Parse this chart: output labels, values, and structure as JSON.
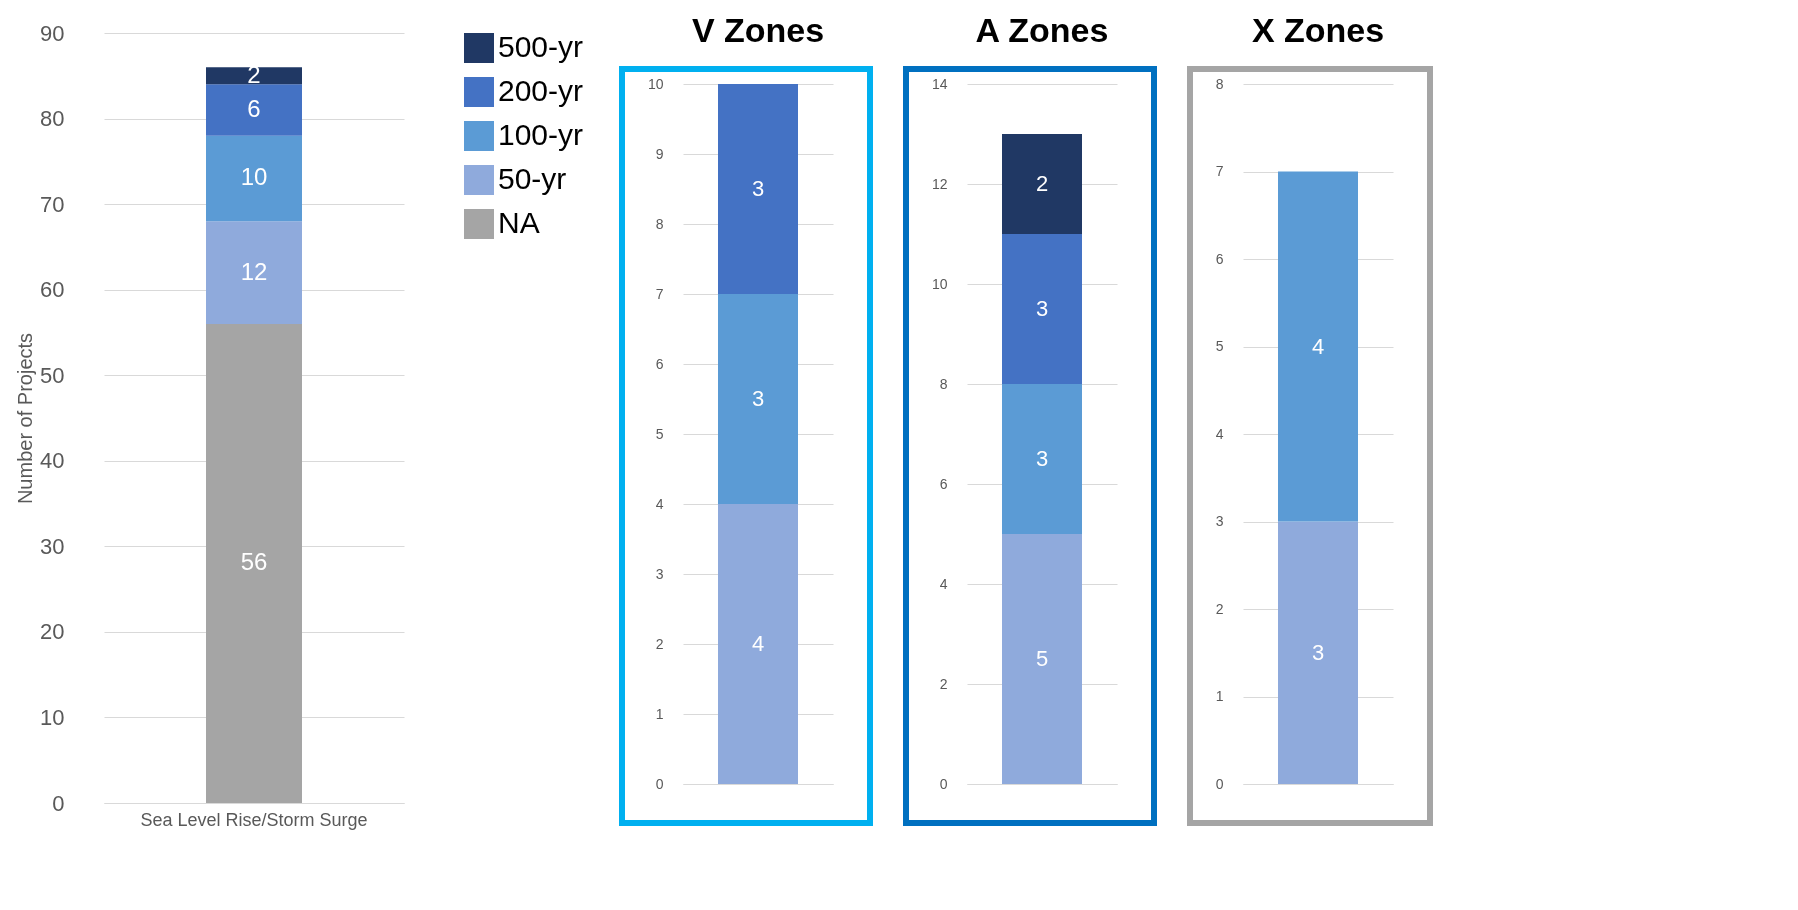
{
  "chart_data": [
    {
      "type": "bar",
      "stacked": true,
      "ylabel": "Number of Projects",
      "categories": [
        "Sea Level Rise/Storm Surge"
      ],
      "ylim": [
        0,
        90
      ],
      "yticks": [
        0,
        10,
        20,
        30,
        40,
        50,
        60,
        70,
        80,
        90
      ],
      "grid": "y",
      "legend": "right",
      "data_labels": true,
      "series": [
        {
          "name": "NA",
          "color": "#a5a5a5",
          "values": [
            56
          ]
        },
        {
          "name": "50-yr",
          "color": "#8faadc",
          "values": [
            12
          ]
        },
        {
          "name": "100-yr",
          "color": "#5b9bd5",
          "values": [
            10
          ]
        },
        {
          "name": "200-yr",
          "color": "#4472c4",
          "values": [
            6
          ]
        },
        {
          "name": "500-yr",
          "color": "#203864",
          "values": [
            2
          ]
        }
      ]
    },
    {
      "type": "bar",
      "stacked": true,
      "title": "V Zones",
      "categories": [
        null
      ],
      "ylim": [
        0,
        10
      ],
      "yticks": [
        0,
        1,
        2,
        3,
        4,
        5,
        6,
        7,
        8,
        9,
        10
      ],
      "grid": "y",
      "data_labels": true,
      "series": [
        {
          "color": "#8faadc",
          "values": [
            4
          ]
        },
        {
          "color": "#5b9bd5",
          "values": [
            3
          ]
        },
        {
          "color": "#4472c4",
          "values": [
            3
          ]
        }
      ]
    },
    {
      "type": "bar",
      "stacked": true,
      "title": "A Zones",
      "categories": [
        null
      ],
      "ylim": [
        0,
        14
      ],
      "yticks": [
        0,
        2,
        4,
        6,
        8,
        10,
        12,
        14
      ],
      "grid": "y",
      "data_labels": true,
      "series": [
        {
          "color": "#8faadc",
          "values": [
            5
          ]
        },
        {
          "color": "#5b9bd5",
          "values": [
            3
          ]
        },
        {
          "color": "#4472c4",
          "values": [
            3
          ]
        },
        {
          "color": "#203864",
          "values": [
            2
          ]
        }
      ]
    },
    {
      "type": "bar",
      "stacked": true,
      "title": "X Zones",
      "categories": [
        null
      ],
      "ylim": [
        0,
        8
      ],
      "yticks": [
        0,
        1,
        2,
        3,
        4,
        5,
        6,
        7,
        8
      ],
      "grid": "y",
      "data_labels": true,
      "series": [
        {
          "color": "#8faadc",
          "values": [
            3
          ]
        },
        {
          "color": "#5b9bd5",
          "values": [
            4
          ]
        }
      ]
    }
  ]
}
